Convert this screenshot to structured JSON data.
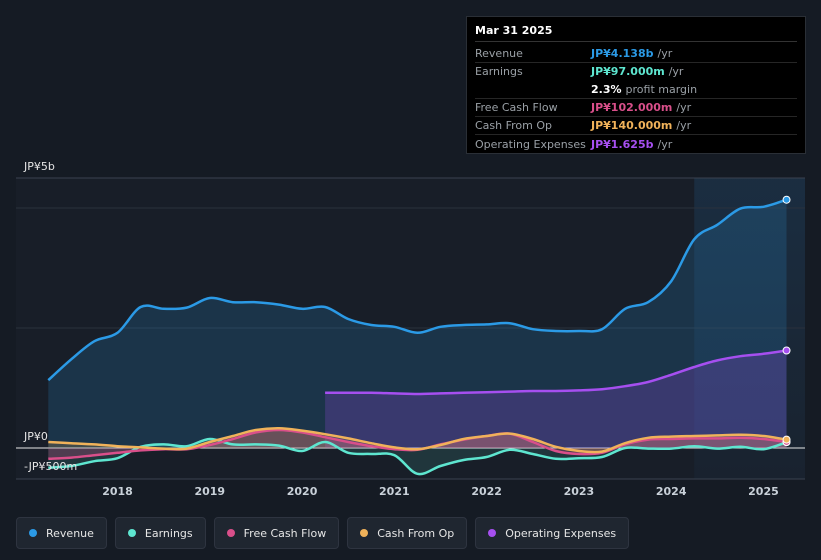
{
  "tooltip": {
    "date": "Mar 31 2025",
    "rows": [
      {
        "label": "Revenue",
        "value": "JP¥4.138b",
        "unit": "/yr",
        "color": "#2b9ae6"
      },
      {
        "label": "Earnings",
        "value": "JP¥97.000m",
        "unit": "/yr",
        "color": "#5ee6d0"
      },
      {
        "label": "",
        "value": "2.3%",
        "unit": "profit margin",
        "color": "#ffffff"
      },
      {
        "label": "Free Cash Flow",
        "value": "JP¥102.000m",
        "unit": "/yr",
        "color": "#d94f8a"
      },
      {
        "label": "Cash From Op",
        "value": "JP¥140.000m",
        "unit": "/yr",
        "color": "#f0b25a"
      },
      {
        "label": "Operating Expenses",
        "value": "JP¥1.625b",
        "unit": "/yr",
        "color": "#a64ff0"
      }
    ]
  },
  "legend": [
    {
      "label": "Revenue",
      "color": "#2b9ae6"
    },
    {
      "label": "Earnings",
      "color": "#5ee6d0"
    },
    {
      "label": "Free Cash Flow",
      "color": "#d94f8a"
    },
    {
      "label": "Cash From Op",
      "color": "#f0b25a"
    },
    {
      "label": "Operating Expenses",
      "color": "#a64ff0"
    }
  ],
  "chart_data": {
    "type": "line",
    "title": "",
    "ylim": [
      -500,
      5000
    ],
    "y_tick_labels": [
      {
        "value": 5000,
        "label": "JP¥5b"
      },
      {
        "value": 0,
        "label": "JP¥0"
      },
      {
        "value": -500,
        "label": "-JP¥500m"
      }
    ],
    "x_ticks": [
      {
        "value": 2018,
        "label": "2018"
      },
      {
        "value": 2019,
        "label": "2019"
      },
      {
        "value": 2020,
        "label": "2020"
      },
      {
        "value": 2021,
        "label": "2021"
      },
      {
        "value": 2022,
        "label": "2022"
      },
      {
        "value": 2023,
        "label": "2023"
      },
      {
        "value": 2024,
        "label": "2024"
      },
      {
        "value": 2025,
        "label": "2025"
      }
    ],
    "xlim": [
      2016.9,
      2025.45
    ],
    "forecast_start": 2024.25,
    "series": [
      {
        "name": "Revenue",
        "color": "#2b9ae6",
        "points": [
          [
            2017.25,
            1130
          ],
          [
            2017.5,
            1480
          ],
          [
            2017.75,
            1780
          ],
          [
            2018.0,
            1920
          ],
          [
            2018.25,
            2350
          ],
          [
            2018.5,
            2320
          ],
          [
            2018.75,
            2340
          ],
          [
            2019.0,
            2500
          ],
          [
            2019.25,
            2430
          ],
          [
            2019.5,
            2430
          ],
          [
            2019.75,
            2390
          ],
          [
            2020.0,
            2320
          ],
          [
            2020.25,
            2350
          ],
          [
            2020.5,
            2150
          ],
          [
            2020.75,
            2050
          ],
          [
            2021.0,
            2020
          ],
          [
            2021.25,
            1920
          ],
          [
            2021.5,
            2020
          ],
          [
            2021.75,
            2050
          ],
          [
            2022.0,
            2060
          ],
          [
            2022.25,
            2080
          ],
          [
            2022.5,
            1980
          ],
          [
            2022.75,
            1950
          ],
          [
            2023.0,
            1950
          ],
          [
            2023.25,
            1980
          ],
          [
            2023.5,
            2320
          ],
          [
            2023.75,
            2430
          ],
          [
            2024.0,
            2780
          ],
          [
            2024.25,
            3480
          ],
          [
            2024.5,
            3720
          ],
          [
            2024.75,
            3990
          ],
          [
            2025.0,
            4020
          ],
          [
            2025.25,
            4138
          ]
        ]
      },
      {
        "name": "Earnings",
        "color": "#5ee6d0",
        "points": [
          [
            2017.25,
            -330
          ],
          [
            2017.5,
            -300
          ],
          [
            2017.75,
            -220
          ],
          [
            2018.0,
            -170
          ],
          [
            2018.25,
            20
          ],
          [
            2018.5,
            60
          ],
          [
            2018.75,
            30
          ],
          [
            2019.0,
            150
          ],
          [
            2019.25,
            60
          ],
          [
            2019.5,
            60
          ],
          [
            2019.75,
            40
          ],
          [
            2020.0,
            -50
          ],
          [
            2020.25,
            100
          ],
          [
            2020.5,
            -80
          ],
          [
            2020.75,
            -100
          ],
          [
            2021.0,
            -120
          ],
          [
            2021.25,
            -430
          ],
          [
            2021.5,
            -300
          ],
          [
            2021.75,
            -200
          ],
          [
            2022.0,
            -150
          ],
          [
            2022.25,
            -30
          ],
          [
            2022.5,
            -100
          ],
          [
            2022.75,
            -180
          ],
          [
            2023.0,
            -170
          ],
          [
            2023.25,
            -150
          ],
          [
            2023.5,
            0
          ],
          [
            2023.75,
            -10
          ],
          [
            2024.0,
            -10
          ],
          [
            2024.25,
            30
          ],
          [
            2024.5,
            -10
          ],
          [
            2024.75,
            20
          ],
          [
            2025.0,
            -20
          ],
          [
            2025.25,
            97
          ]
        ]
      },
      {
        "name": "Free Cash Flow",
        "color": "#d94f8a",
        "points": [
          [
            2017.25,
            -180
          ],
          [
            2017.5,
            -160
          ],
          [
            2017.75,
            -120
          ],
          [
            2018.0,
            -80
          ],
          [
            2018.25,
            -40
          ],
          [
            2018.5,
            -20
          ],
          [
            2018.75,
            -20
          ],
          [
            2019.0,
            50
          ],
          [
            2019.25,
            150
          ],
          [
            2019.5,
            260
          ],
          [
            2019.75,
            300
          ],
          [
            2020.0,
            260
          ],
          [
            2020.25,
            180
          ],
          [
            2020.5,
            100
          ],
          [
            2020.75,
            30
          ],
          [
            2021.0,
            -20
          ],
          [
            2021.25,
            -30
          ],
          [
            2021.5,
            60
          ],
          [
            2021.75,
            140
          ],
          [
            2022.0,
            200
          ],
          [
            2022.25,
            240
          ],
          [
            2022.5,
            100
          ],
          [
            2022.75,
            -50
          ],
          [
            2023.0,
            -100
          ],
          [
            2023.25,
            -80
          ],
          [
            2023.5,
            60
          ],
          [
            2023.75,
            140
          ],
          [
            2024.0,
            150
          ],
          [
            2024.25,
            160
          ],
          [
            2024.5,
            160
          ],
          [
            2024.75,
            170
          ],
          [
            2025.0,
            150
          ],
          [
            2025.25,
            102
          ]
        ]
      },
      {
        "name": "Cash From Op",
        "color": "#f0b25a",
        "points": [
          [
            2017.25,
            100
          ],
          [
            2017.5,
            80
          ],
          [
            2017.75,
            60
          ],
          [
            2018.0,
            30
          ],
          [
            2018.25,
            10
          ],
          [
            2018.5,
            -10
          ],
          [
            2018.75,
            -10
          ],
          [
            2019.0,
            100
          ],
          [
            2019.25,
            200
          ],
          [
            2019.5,
            300
          ],
          [
            2019.75,
            330
          ],
          [
            2020.0,
            290
          ],
          [
            2020.25,
            230
          ],
          [
            2020.5,
            160
          ],
          [
            2020.75,
            80
          ],
          [
            2021.0,
            10
          ],
          [
            2021.25,
            -20
          ],
          [
            2021.5,
            50
          ],
          [
            2021.75,
            150
          ],
          [
            2022.0,
            200
          ],
          [
            2022.25,
            240
          ],
          [
            2022.5,
            150
          ],
          [
            2022.75,
            20
          ],
          [
            2023.0,
            -50
          ],
          [
            2023.25,
            -60
          ],
          [
            2023.5,
            80
          ],
          [
            2023.75,
            170
          ],
          [
            2024.0,
            190
          ],
          [
            2024.25,
            200
          ],
          [
            2024.5,
            210
          ],
          [
            2024.75,
            220
          ],
          [
            2025.0,
            200
          ],
          [
            2025.25,
            140
          ]
        ]
      },
      {
        "name": "Operating Expenses",
        "color": "#a64ff0",
        "points": [
          [
            2020.25,
            920
          ],
          [
            2020.5,
            920
          ],
          [
            2020.75,
            920
          ],
          [
            2021.0,
            910
          ],
          [
            2021.25,
            900
          ],
          [
            2021.5,
            910
          ],
          [
            2021.75,
            920
          ],
          [
            2022.0,
            930
          ],
          [
            2022.25,
            940
          ],
          [
            2022.5,
            950
          ],
          [
            2022.75,
            950
          ],
          [
            2023.0,
            960
          ],
          [
            2023.25,
            980
          ],
          [
            2023.5,
            1030
          ],
          [
            2023.75,
            1100
          ],
          [
            2024.0,
            1220
          ],
          [
            2024.25,
            1350
          ],
          [
            2024.5,
            1460
          ],
          [
            2024.75,
            1530
          ],
          [
            2025.0,
            1570
          ],
          [
            2025.25,
            1625
          ]
        ]
      }
    ]
  }
}
